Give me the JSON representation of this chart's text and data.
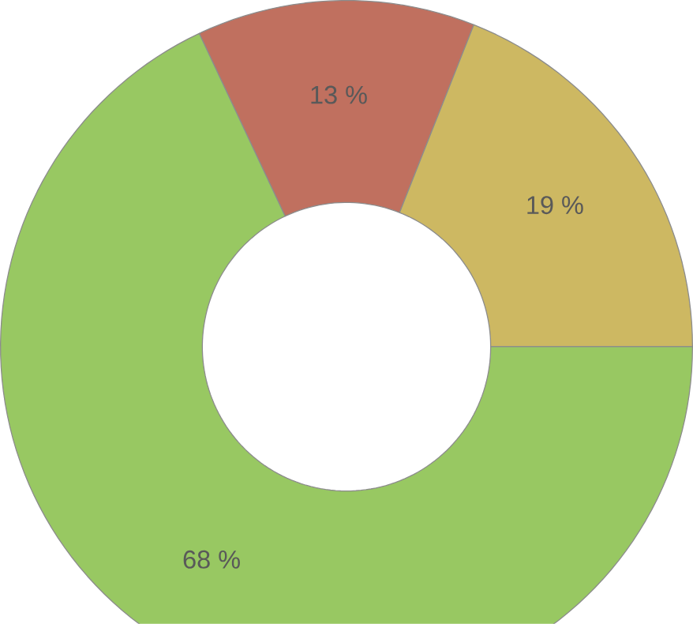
{
  "chart_data": {
    "type": "donut",
    "categories": [
      null,
      null,
      null
    ],
    "values": [
      13,
      19,
      68
    ],
    "colors": [
      "#c0705f",
      "#cdb862",
      "#98c862"
    ],
    "value_labels": [
      "13 %",
      "19 %",
      "68 %"
    ]
  }
}
